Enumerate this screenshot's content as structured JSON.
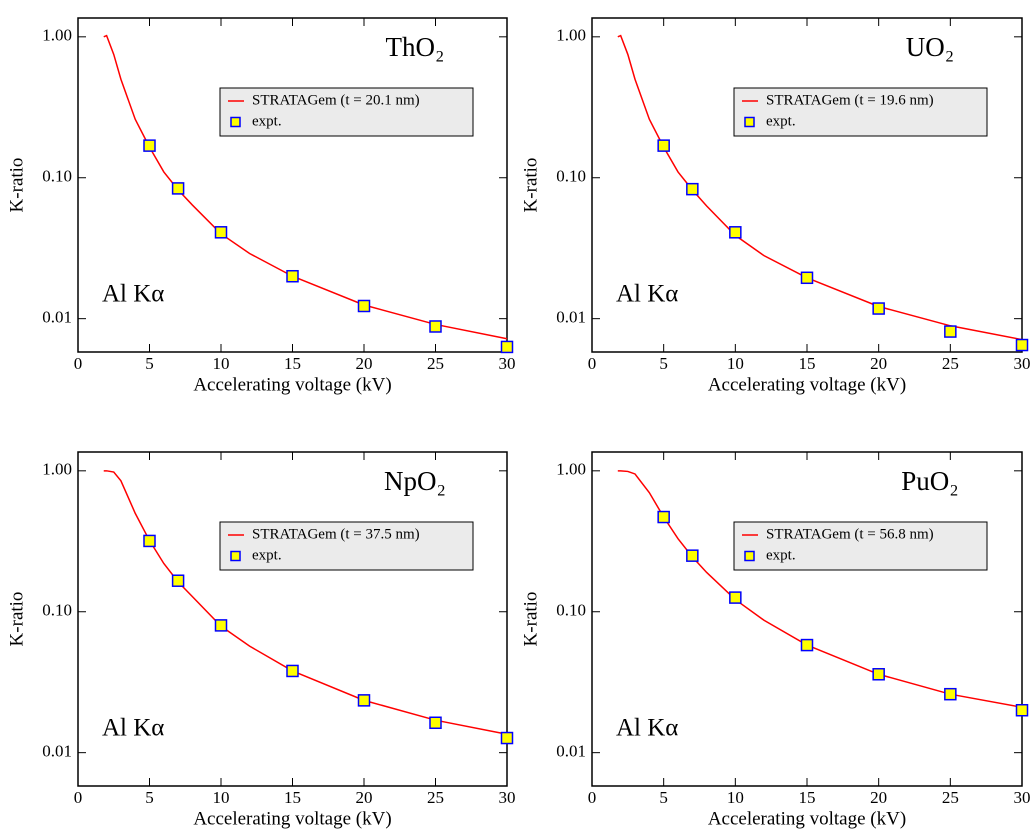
{
  "chart_data": [
    {
      "type": "line",
      "title": "ThO₂",
      "annotation": "Al Kα",
      "xlabel": "Accelerating voltage (kV)",
      "ylabel": "K-ratio",
      "xlim": [
        0,
        30
      ],
      "xticks": [
        0,
        5,
        10,
        15,
        20,
        25,
        30
      ],
      "ylim": [
        0.0058,
        1.36
      ],
      "ylog": true,
      "yticks": [
        {
          "value": 0.01,
          "label": "0.01"
        },
        {
          "value": 0.1,
          "label": "0.10"
        },
        {
          "value": 1,
          "label": "1.00"
        }
      ],
      "series": [
        {
          "name": "STRATAGem (t = 20.1 nm)",
          "style": "line",
          "color": "#ff0000",
          "x": [
            1.8,
            2,
            2.5,
            3,
            4,
            5,
            6,
            7,
            8,
            10,
            12,
            15,
            20,
            25,
            30
          ],
          "values": [
            1.0,
            1.02,
            0.75,
            0.5,
            0.26,
            0.165,
            0.11,
            0.082,
            0.064,
            0.04,
            0.029,
            0.02,
            0.0125,
            0.0091,
            0.0072
          ]
        },
        {
          "name": "expt.",
          "style": "marker",
          "color": "#ffff00",
          "edgecolor": "#0000ff",
          "x": [
            5,
            7,
            10,
            15,
            20,
            25,
            30
          ],
          "values": [
            0.169,
            0.084,
            0.041,
            0.02,
            0.0123,
            0.0088,
            0.0063
          ]
        }
      ]
    },
    {
      "type": "line",
      "title": "UO₂",
      "annotation": "Al Kα",
      "xlabel": "Accelerating voltage (kV)",
      "ylabel": "K-ratio",
      "xlim": [
        0,
        30
      ],
      "xticks": [
        0,
        5,
        10,
        15,
        20,
        25,
        30
      ],
      "ylim": [
        0.0058,
        1.36
      ],
      "ylog": true,
      "yticks": [
        {
          "value": 0.01,
          "label": "0.01"
        },
        {
          "value": 0.1,
          "label": "0.10"
        },
        {
          "value": 1,
          "label": "1.00"
        }
      ],
      "series": [
        {
          "name": "STRATAGem (t = 19.6 nm)",
          "style": "line",
          "color": "#ff0000",
          "x": [
            1.8,
            2,
            2.5,
            3,
            4,
            5,
            6,
            7,
            8,
            10,
            12,
            15,
            20,
            25,
            30
          ],
          "values": [
            1.0,
            1.02,
            0.75,
            0.5,
            0.26,
            0.165,
            0.11,
            0.082,
            0.063,
            0.039,
            0.028,
            0.0195,
            0.0122,
            0.0089,
            0.0071
          ]
        },
        {
          "name": "expt.",
          "style": "marker",
          "color": "#ffff00",
          "edgecolor": "#0000ff",
          "x": [
            5,
            7,
            10,
            15,
            20,
            25,
            30
          ],
          "values": [
            0.169,
            0.083,
            0.041,
            0.0195,
            0.0118,
            0.0081,
            0.0065
          ]
        }
      ]
    },
    {
      "type": "line",
      "title": "NpO₂",
      "annotation": "Al Kα",
      "xlabel": "Accelerating voltage (kV)",
      "ylabel": "K-ratio",
      "xlim": [
        0,
        30
      ],
      "xticks": [
        0,
        5,
        10,
        15,
        20,
        25,
        30
      ],
      "ylim": [
        0.0058,
        1.36
      ],
      "ylog": true,
      "yticks": [
        {
          "value": 0.01,
          "label": "0.01"
        },
        {
          "value": 0.1,
          "label": "0.10"
        },
        {
          "value": 1,
          "label": "1.00"
        }
      ],
      "series": [
        {
          "name": "STRATAGem (t = 37.5 nm)",
          "style": "line",
          "color": "#ff0000",
          "x": [
            1.8,
            2,
            2.5,
            3,
            4,
            5,
            6,
            7,
            8,
            10,
            12,
            15,
            20,
            25,
            30
          ],
          "values": [
            1.0,
            1.0,
            0.98,
            0.85,
            0.5,
            0.32,
            0.22,
            0.163,
            0.128,
            0.079,
            0.057,
            0.038,
            0.0235,
            0.017,
            0.0135
          ]
        },
        {
          "name": "expt.",
          "style": "marker",
          "color": "#ffff00",
          "edgecolor": "#0000ff",
          "x": [
            5,
            7,
            10,
            15,
            20,
            25,
            30
          ],
          "values": [
            0.318,
            0.166,
            0.08,
            0.038,
            0.0235,
            0.0163,
            0.0127
          ]
        }
      ]
    },
    {
      "type": "line",
      "title": "PuO₂",
      "annotation": "Al Kα",
      "xlabel": "Accelerating voltage (kV)",
      "ylabel": "K-ratio",
      "xlim": [
        0,
        30
      ],
      "xticks": [
        0,
        5,
        10,
        15,
        20,
        25,
        30
      ],
      "ylim": [
        0.0058,
        1.36
      ],
      "ylog": true,
      "yticks": [
        {
          "value": 0.01,
          "label": "0.01"
        },
        {
          "value": 0.1,
          "label": "0.10"
        },
        {
          "value": 1,
          "label": "1.00"
        }
      ],
      "series": [
        {
          "name": "STRATAGem (t = 56.8 nm)",
          "style": "line",
          "color": "#ff0000",
          "x": [
            1.8,
            2,
            2.5,
            3,
            4,
            5,
            6,
            7,
            8,
            10,
            12,
            15,
            20,
            25,
            30
          ],
          "values": [
            1.0,
            1.0,
            0.99,
            0.95,
            0.7,
            0.47,
            0.33,
            0.245,
            0.19,
            0.122,
            0.087,
            0.058,
            0.036,
            0.026,
            0.021
          ]
        },
        {
          "name": "expt.",
          "style": "marker",
          "color": "#ffff00",
          "edgecolor": "#0000ff",
          "x": [
            5,
            7,
            10,
            15,
            20,
            25,
            30
          ],
          "values": [
            0.47,
            0.25,
            0.126,
            0.058,
            0.036,
            0.026,
            0.02
          ]
        }
      ]
    }
  ]
}
